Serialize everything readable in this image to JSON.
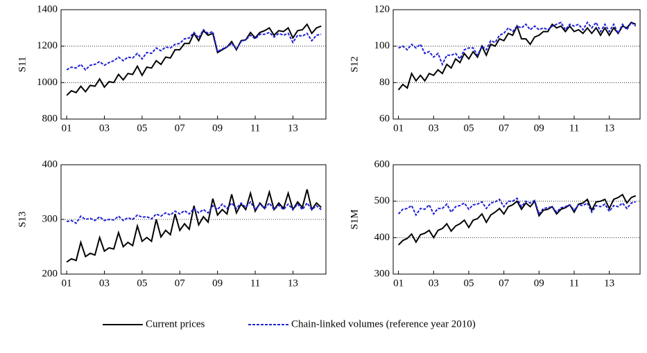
{
  "chart_data": [
    {
      "type": "line",
      "ylabel": "S11",
      "x": [
        1,
        1.25,
        1.5,
        1.75,
        2,
        2.25,
        2.5,
        2.75,
        3,
        3.25,
        3.5,
        3.75,
        4,
        4.25,
        4.5,
        4.75,
        5,
        5.25,
        5.5,
        5.75,
        6,
        6.25,
        6.5,
        6.75,
        7,
        7.25,
        7.5,
        7.75,
        8,
        8.25,
        8.5,
        8.75,
        9,
        9.25,
        9.5,
        9.75,
        10,
        10.25,
        10.5,
        10.75,
        11,
        11.25,
        11.5,
        11.75,
        12,
        12.25,
        12.5,
        12.75,
        13,
        13.25,
        13.5,
        13.75,
        14,
        14.25,
        14.5
      ],
      "xlim": [
        0.7,
        14.75
      ],
      "xticks": [
        {
          "value": 1,
          "label": "01"
        },
        {
          "value": 3,
          "label": "03"
        },
        {
          "value": 5,
          "label": "05"
        },
        {
          "value": 7,
          "label": "07"
        },
        {
          "value": 9,
          "label": "09"
        },
        {
          "value": 11,
          "label": "11"
        },
        {
          "value": 13,
          "label": "13"
        }
      ],
      "ylim": [
        800,
        1400
      ],
      "yticks": [
        800,
        1000,
        1200,
        1400
      ],
      "grid": true,
      "series": [
        {
          "color": "#000000",
          "dash": false,
          "values": [
            930,
            955,
            945,
            980,
            950,
            985,
            980,
            1020,
            975,
            1005,
            1000,
            1045,
            1015,
            1050,
            1045,
            1090,
            1040,
            1085,
            1080,
            1120,
            1100,
            1140,
            1135,
            1180,
            1180,
            1215,
            1215,
            1270,
            1230,
            1285,
            1260,
            1270,
            1165,
            1180,
            1195,
            1225,
            1180,
            1230,
            1235,
            1275,
            1245,
            1275,
            1285,
            1300,
            1260,
            1285,
            1280,
            1300,
            1245,
            1285,
            1290,
            1320,
            1270,
            1300,
            1310
          ]
        },
        {
          "color": "#1f1fd6",
          "dash": true,
          "values": [
            1070,
            1085,
            1080,
            1100,
            1070,
            1095,
            1100,
            1115,
            1095,
            1110,
            1120,
            1140,
            1120,
            1140,
            1135,
            1160,
            1130,
            1165,
            1160,
            1190,
            1175,
            1195,
            1190,
            1210,
            1215,
            1240,
            1245,
            1275,
            1245,
            1290,
            1270,
            1280,
            1170,
            1185,
            1195,
            1215,
            1185,
            1225,
            1235,
            1260,
            1240,
            1265,
            1265,
            1275,
            1250,
            1270,
            1260,
            1270,
            1220,
            1260,
            1255,
            1270,
            1230,
            1260,
            1265
          ]
        }
      ]
    },
    {
      "type": "line",
      "ylabel": "S12",
      "x": [
        1,
        1.25,
        1.5,
        1.75,
        2,
        2.25,
        2.5,
        2.75,
        3,
        3.25,
        3.5,
        3.75,
        4,
        4.25,
        4.5,
        4.75,
        5,
        5.25,
        5.5,
        5.75,
        6,
        6.25,
        6.5,
        6.75,
        7,
        7.25,
        7.5,
        7.75,
        8,
        8.25,
        8.5,
        8.75,
        9,
        9.25,
        9.5,
        9.75,
        10,
        10.25,
        10.5,
        10.75,
        11,
        11.25,
        11.5,
        11.75,
        12,
        12.25,
        12.5,
        12.75,
        13,
        13.25,
        13.5,
        13.75,
        14,
        14.25,
        14.5
      ],
      "xlim": [
        0.7,
        14.75
      ],
      "xticks": [
        {
          "value": 1,
          "label": "01"
        },
        {
          "value": 3,
          "label": "03"
        },
        {
          "value": 5,
          "label": "05"
        },
        {
          "value": 7,
          "label": "07"
        },
        {
          "value": 9,
          "label": "09"
        },
        {
          "value": 11,
          "label": "11"
        },
        {
          "value": 13,
          "label": "13"
        }
      ],
      "ylim": [
        60,
        120
      ],
      "yticks": [
        60,
        80,
        100,
        120
      ],
      "grid": true,
      "series": [
        {
          "color": "#000000",
          "dash": false,
          "values": [
            76,
            79,
            77,
            85,
            81,
            84,
            81,
            85,
            84,
            87,
            85,
            90,
            88,
            93,
            91,
            96,
            93,
            97,
            94,
            100,
            95,
            101,
            100,
            104,
            103,
            107,
            106,
            111,
            104,
            104,
            101,
            105,
            106,
            108,
            108,
            112,
            110,
            111,
            108,
            111,
            108,
            109,
            107,
            110,
            107,
            110,
            106,
            110,
            106,
            110,
            107,
            111,
            110,
            113,
            112
          ]
        },
        {
          "color": "#1f1fd6",
          "dash": true,
          "values": [
            99,
            100,
            98,
            101,
            99,
            101,
            96,
            97,
            94,
            96,
            90,
            95,
            95,
            96,
            93,
            98,
            99,
            99,
            95,
            100,
            98,
            103,
            102,
            106,
            107,
            110,
            108,
            111,
            110,
            112,
            109,
            111,
            109,
            110,
            109,
            111,
            112,
            113,
            109,
            112,
            111,
            112,
            109,
            113,
            110,
            113,
            108,
            112,
            108,
            112,
            107,
            112,
            109,
            113,
            111
          ]
        }
      ]
    },
    {
      "type": "line",
      "ylabel": "S13",
      "x": [
        1,
        1.25,
        1.5,
        1.75,
        2,
        2.25,
        2.5,
        2.75,
        3,
        3.25,
        3.5,
        3.75,
        4,
        4.25,
        4.5,
        4.75,
        5,
        5.25,
        5.5,
        5.75,
        6,
        6.25,
        6.5,
        6.75,
        7,
        7.25,
        7.5,
        7.75,
        8,
        8.25,
        8.5,
        8.75,
        9,
        9.25,
        9.5,
        9.75,
        10,
        10.25,
        10.5,
        10.75,
        11,
        11.25,
        11.5,
        11.75,
        12,
        12.25,
        12.5,
        12.75,
        13,
        13.25,
        13.5,
        13.75,
        14,
        14.25,
        14.5
      ],
      "xlim": [
        0.7,
        14.75
      ],
      "xticks": [
        {
          "value": 1,
          "label": "01"
        },
        {
          "value": 3,
          "label": "03"
        },
        {
          "value": 5,
          "label": "05"
        },
        {
          "value": 7,
          "label": "07"
        },
        {
          "value": 9,
          "label": "09"
        },
        {
          "value": 11,
          "label": "11"
        },
        {
          "value": 13,
          "label": "13"
        }
      ],
      "ylim": [
        200,
        400
      ],
      "yticks": [
        200,
        300,
        400
      ],
      "grid": true,
      "series": [
        {
          "color": "#000000",
          "dash": false,
          "values": [
            222,
            228,
            225,
            258,
            232,
            238,
            235,
            267,
            242,
            248,
            246,
            276,
            250,
            258,
            252,
            288,
            260,
            267,
            260,
            300,
            268,
            280,
            272,
            310,
            280,
            292,
            282,
            325,
            290,
            305,
            295,
            338,
            308,
            318,
            310,
            346,
            312,
            328,
            318,
            348,
            315,
            330,
            320,
            350,
            318,
            330,
            320,
            348,
            318,
            332,
            322,
            355,
            318,
            330,
            322
          ]
        },
        {
          "color": "#1f1fd6",
          "dash": true,
          "values": [
            296,
            298,
            293,
            306,
            300,
            302,
            298,
            305,
            298,
            300,
            299,
            306,
            298,
            303,
            300,
            308,
            304,
            305,
            301,
            310,
            306,
            312,
            308,
            315,
            310,
            316,
            310,
            320,
            312,
            318,
            312,
            325,
            318,
            328,
            320,
            330,
            320,
            330,
            322,
            332,
            318,
            328,
            320,
            330,
            318,
            326,
            318,
            328,
            318,
            328,
            318,
            330,
            318,
            325,
            318
          ]
        }
      ]
    },
    {
      "type": "line",
      "ylabel": "S1M",
      "x": [
        1,
        1.25,
        1.5,
        1.75,
        2,
        2.25,
        2.5,
        2.75,
        3,
        3.25,
        3.5,
        3.75,
        4,
        4.25,
        4.5,
        4.75,
        5,
        5.25,
        5.5,
        5.75,
        6,
        6.25,
        6.5,
        6.75,
        7,
        7.25,
        7.5,
        7.75,
        8,
        8.25,
        8.5,
        8.75,
        9,
        9.25,
        9.5,
        9.75,
        10,
        10.25,
        10.5,
        10.75,
        11,
        11.25,
        11.5,
        11.75,
        12,
        12.25,
        12.5,
        12.75,
        13,
        13.25,
        13.5,
        13.75,
        14,
        14.25,
        14.5
      ],
      "xlim": [
        0.7,
        14.75
      ],
      "xticks": [
        {
          "value": 1,
          "label": "01"
        },
        {
          "value": 3,
          "label": "03"
        },
        {
          "value": 5,
          "label": "05"
        },
        {
          "value": 7,
          "label": "07"
        },
        {
          "value": 9,
          "label": "09"
        },
        {
          "value": 11,
          "label": "11"
        },
        {
          "value": 13,
          "label": "13"
        }
      ],
      "ylim": [
        300,
        600
      ],
      "yticks": [
        300,
        400,
        500,
        600
      ],
      "grid": true,
      "series": [
        {
          "color": "#000000",
          "dash": false,
          "values": [
            380,
            392,
            398,
            410,
            388,
            408,
            412,
            420,
            400,
            420,
            425,
            438,
            418,
            432,
            438,
            448,
            428,
            448,
            452,
            465,
            442,
            462,
            470,
            480,
            465,
            485,
            490,
            500,
            478,
            495,
            485,
            500,
            460,
            475,
            478,
            485,
            465,
            478,
            482,
            490,
            470,
            492,
            495,
            505,
            475,
            498,
            500,
            505,
            480,
            505,
            510,
            518,
            495,
            510,
            515
          ]
        },
        {
          "color": "#1f1fd6",
          "dash": true,
          "values": [
            465,
            478,
            480,
            488,
            462,
            480,
            478,
            490,
            465,
            480,
            480,
            492,
            470,
            485,
            488,
            495,
            478,
            490,
            492,
            498,
            480,
            495,
            498,
            505,
            485,
            500,
            500,
            508,
            485,
            500,
            495,
            502,
            465,
            480,
            482,
            485,
            470,
            482,
            485,
            490,
            475,
            490,
            488,
            495,
            470,
            488,
            485,
            492,
            472,
            488,
            485,
            495,
            480,
            495,
            498
          ]
        }
      ]
    }
  ],
  "legend": {
    "entries": [
      {
        "name": "Current prices",
        "color": "#000000",
        "dash": false
      },
      {
        "name": "Chain-linked volumes (reference year 2010)",
        "color": "#1f1fd6",
        "dash": true
      }
    ]
  }
}
